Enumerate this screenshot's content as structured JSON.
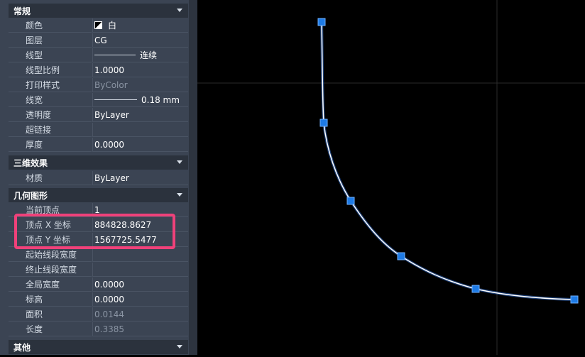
{
  "sections": {
    "general": "常规",
    "threed": "三维效果",
    "geometry": "几何图形",
    "misc": "其他"
  },
  "general": {
    "color_label": "颜色",
    "color_value": "白",
    "layer_label": "图层",
    "layer_value": "CG",
    "linetype_label": "线型",
    "linetype_value": "连续",
    "ltscale_label": "线型比例",
    "ltscale_value": "1.0000",
    "plotstyle_label": "打印样式",
    "plotstyle_value": "ByColor",
    "lineweight_label": "线宽",
    "lineweight_value": "0.18 mm",
    "transparency_label": "透明度",
    "transparency_value": "ByLayer",
    "hyperlink_label": "超链接",
    "hyperlink_value": "",
    "thickness_label": "厚度",
    "thickness_value": "0.0000"
  },
  "threed": {
    "material_label": "材质",
    "material_value": "ByLayer"
  },
  "geometry": {
    "current_vertex_label": "当前顶点",
    "current_vertex_value": "1",
    "vertex_x_label": "顶点 X 坐标",
    "vertex_x_value": "884828.8627",
    "vertex_y_label": "顶点 Y 坐标",
    "vertex_y_value": "1567725.5477",
    "start_width_label": "起始线段宽度",
    "start_width_value": "",
    "end_width_label": "终止线段宽度",
    "end_width_value": "",
    "global_width_label": "全局宽度",
    "global_width_value": "0.0000",
    "elevation_label": "标高",
    "elevation_value": "0.0000",
    "area_label": "面积",
    "area_value": "0.0144",
    "length_label": "长度",
    "length_value": "0.3385"
  },
  "colors": {
    "panel_bg": "#3b4453",
    "header_bg": "#2b323d",
    "highlight": "#f0417a",
    "grip": "#1e7be6",
    "polyline": "#ffffff"
  }
}
